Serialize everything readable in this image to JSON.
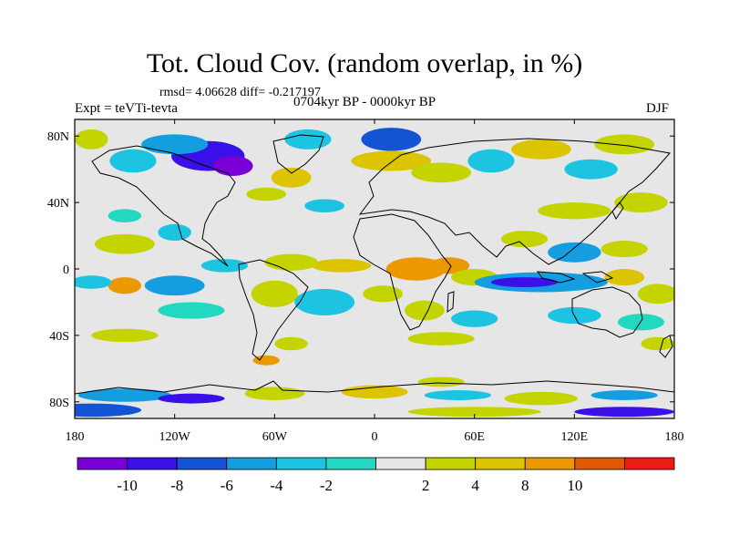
{
  "header": {
    "title": "Tot. Cloud Cov. (random overlap, in %)",
    "stats": "rmsd= 4.06628 diff= -0.217197",
    "expt": "Expt = teVTi-tevta",
    "period": "0704kyr BP - 0000kyr BP",
    "season": "DJF"
  },
  "map": {
    "lon_ticks": [
      {
        "lon": -180,
        "label": "180"
      },
      {
        "lon": -120,
        "label": "120W"
      },
      {
        "lon": -60,
        "label": "60W"
      },
      {
        "lon": 0,
        "label": "0"
      },
      {
        "lon": 60,
        "label": "60E"
      },
      {
        "lon": 120,
        "label": "120E"
      },
      {
        "lon": 180,
        "label": "180"
      }
    ],
    "lat_ticks": [
      {
        "lat": 80,
        "label": "80N"
      },
      {
        "lat": 40,
        "label": "40N"
      },
      {
        "lat": 0,
        "label": "0"
      },
      {
        "lat": -40,
        "label": "40S"
      },
      {
        "lat": -80,
        "label": "80S"
      }
    ],
    "lat_range": [
      -90,
      90
    ],
    "lon_range": [
      -180,
      180
    ],
    "background_color": "#e6e6e6",
    "anomaly_blobs": [
      {
        "lon": -100,
        "lat": 68,
        "rlon": 22,
        "rlat": 9,
        "level": -10
      },
      {
        "lon": -85,
        "lat": 62,
        "rlon": 12,
        "rlat": 6,
        "level": -12
      },
      {
        "lon": -120,
        "lat": 75,
        "rlon": 20,
        "rlat": 6,
        "level": -6
      },
      {
        "lon": -145,
        "lat": 65,
        "rlon": 14,
        "rlat": 7,
        "level": -4
      },
      {
        "lon": -40,
        "lat": 78,
        "rlon": 14,
        "rlat": 6,
        "level": -4
      },
      {
        "lon": -50,
        "lat": 55,
        "rlon": 12,
        "rlat": 6,
        "level": 6
      },
      {
        "lon": -65,
        "lat": 45,
        "rlon": 12,
        "rlat": 4,
        "level": 3
      },
      {
        "lon": 10,
        "lat": 78,
        "rlon": 18,
        "rlat": 7,
        "level": -8
      },
      {
        "lon": 10,
        "lat": 65,
        "rlon": 24,
        "rlat": 6,
        "level": 6
      },
      {
        "lon": 40,
        "lat": 58,
        "rlon": 18,
        "rlat": 6,
        "level": 4
      },
      {
        "lon": 70,
        "lat": 65,
        "rlon": 14,
        "rlat": 7,
        "level": -4
      },
      {
        "lon": 100,
        "lat": 72,
        "rlon": 18,
        "rlat": 6,
        "level": 6
      },
      {
        "lon": 130,
        "lat": 60,
        "rlon": 16,
        "rlat": 6,
        "level": -4
      },
      {
        "lon": 150,
        "lat": 75,
        "rlon": 18,
        "rlat": 6,
        "level": 4
      },
      {
        "lon": -170,
        "lat": 78,
        "rlon": 10,
        "rlat": 6,
        "level": 3
      },
      {
        "lon": 120,
        "lat": 35,
        "rlon": 22,
        "rlat": 5,
        "level": 4
      },
      {
        "lon": 160,
        "lat": 40,
        "rlon": 16,
        "rlat": 6,
        "level": 3
      },
      {
        "lon": -30,
        "lat": 38,
        "rlon": 12,
        "rlat": 4,
        "level": -4
      },
      {
        "lon": -150,
        "lat": 32,
        "rlon": 10,
        "rlat": 4,
        "level": -3
      },
      {
        "lon": -150,
        "lat": 15,
        "rlon": 18,
        "rlat": 6,
        "level": 3
      },
      {
        "lon": -120,
        "lat": 22,
        "rlon": 10,
        "rlat": 5,
        "level": -4
      },
      {
        "lon": 90,
        "lat": 18,
        "rlon": 14,
        "rlat": 5,
        "level": 3
      },
      {
        "lon": 120,
        "lat": 10,
        "rlon": 16,
        "rlat": 6,
        "level": -6
      },
      {
        "lon": 150,
        "lat": 12,
        "rlon": 14,
        "rlat": 5,
        "level": 4
      },
      {
        "lon": -20,
        "lat": 2,
        "rlon": 18,
        "rlat": 4,
        "level": 6
      },
      {
        "lon": -50,
        "lat": 4,
        "rlon": 16,
        "rlat": 5,
        "level": 5
      },
      {
        "lon": -90,
        "lat": 2,
        "rlon": 14,
        "rlat": 4,
        "level": -4
      },
      {
        "lon": 25,
        "lat": 0,
        "rlon": 18,
        "rlat": 7,
        "level": 8
      },
      {
        "lon": 45,
        "lat": 2,
        "rlon": 12,
        "rlat": 5,
        "level": 9
      },
      {
        "lon": 60,
        "lat": -5,
        "rlon": 14,
        "rlat": 5,
        "level": 4
      },
      {
        "lon": 100,
        "lat": -8,
        "rlon": 40,
        "rlat": 6,
        "level": -6
      },
      {
        "lon": 90,
        "lat": -8,
        "rlon": 20,
        "rlat": 3,
        "level": -10
      },
      {
        "lon": 150,
        "lat": -5,
        "rlon": 12,
        "rlat": 5,
        "level": 6
      },
      {
        "lon": 170,
        "lat": -15,
        "rlon": 12,
        "rlat": 6,
        "level": 4
      },
      {
        "lon": -150,
        "lat": -10,
        "rlon": 10,
        "rlat": 5,
        "level": 9
      },
      {
        "lon": -170,
        "lat": -8,
        "rlon": 12,
        "rlat": 4,
        "level": -4
      },
      {
        "lon": -120,
        "lat": -10,
        "rlon": 18,
        "rlat": 6,
        "level": -6
      },
      {
        "lon": -110,
        "lat": -25,
        "rlon": 20,
        "rlat": 5,
        "level": -3
      },
      {
        "lon": -60,
        "lat": -15,
        "rlon": 14,
        "rlat": 8,
        "level": 4
      },
      {
        "lon": -30,
        "lat": -20,
        "rlon": 18,
        "rlat": 8,
        "level": -4
      },
      {
        "lon": 5,
        "lat": -15,
        "rlon": 12,
        "rlat": 5,
        "level": 3
      },
      {
        "lon": 30,
        "lat": -25,
        "rlon": 12,
        "rlat": 6,
        "level": 4
      },
      {
        "lon": 60,
        "lat": -30,
        "rlon": 14,
        "rlat": 5,
        "level": -4
      },
      {
        "lon": 120,
        "lat": -28,
        "rlon": 16,
        "rlat": 5,
        "level": -4
      },
      {
        "lon": 160,
        "lat": -32,
        "rlon": 14,
        "rlat": 5,
        "level": -3
      },
      {
        "lon": -150,
        "lat": -40,
        "rlon": 20,
        "rlat": 4,
        "level": 3
      },
      {
        "lon": -50,
        "lat": -45,
        "rlon": 10,
        "rlat": 4,
        "level": 3
      },
      {
        "lon": -65,
        "lat": -55,
        "rlon": 8,
        "rlat": 3,
        "level": 8
      },
      {
        "lon": 40,
        "lat": -42,
        "rlon": 20,
        "rlat": 4,
        "level": 3
      },
      {
        "lon": 170,
        "lat": -45,
        "rlon": 10,
        "rlat": 4,
        "level": 3
      },
      {
        "lon": -150,
        "lat": -76,
        "rlon": 28,
        "rlat": 4,
        "level": -6
      },
      {
        "lon": -110,
        "lat": -78,
        "rlon": 20,
        "rlat": 3,
        "level": -10
      },
      {
        "lon": -60,
        "lat": -75,
        "rlon": 18,
        "rlat": 4,
        "level": 4
      },
      {
        "lon": 0,
        "lat": -74,
        "rlon": 20,
        "rlat": 4,
        "level": 6
      },
      {
        "lon": 50,
        "lat": -76,
        "rlon": 20,
        "rlat": 3,
        "level": -4
      },
      {
        "lon": 100,
        "lat": -78,
        "rlon": 22,
        "rlat": 4,
        "level": 4
      },
      {
        "lon": 150,
        "lat": -76,
        "rlon": 20,
        "rlat": 3,
        "level": -6
      },
      {
        "lon": 40,
        "lat": -68,
        "rlon": 14,
        "rlat": 3,
        "level": 3
      },
      {
        "lon": -170,
        "lat": -85,
        "rlon": 30,
        "rlat": 4,
        "level": -8
      },
      {
        "lon": 150,
        "lat": -86,
        "rlon": 30,
        "rlat": 3,
        "level": -10
      },
      {
        "lon": 60,
        "lat": -86,
        "rlon": 40,
        "rlat": 3,
        "level": 4
      }
    ]
  },
  "colorbar": {
    "colors": [
      "#7a00d8",
      "#3a10e8",
      "#1454d4",
      "#149ee0",
      "#1cc4e2",
      "#22d8c0",
      "#e6e6e6",
      "#c4d400",
      "#dcc400",
      "#ec9800",
      "#e05800",
      "#ec1c10"
    ],
    "labels": [
      "-10",
      "-8",
      "-6",
      "-4",
      "-2",
      "2",
      "4",
      "8",
      "10"
    ],
    "levels": [
      -12,
      -10,
      -8,
      -6,
      -4,
      -2,
      2,
      4,
      6,
      8,
      10,
      12
    ]
  }
}
